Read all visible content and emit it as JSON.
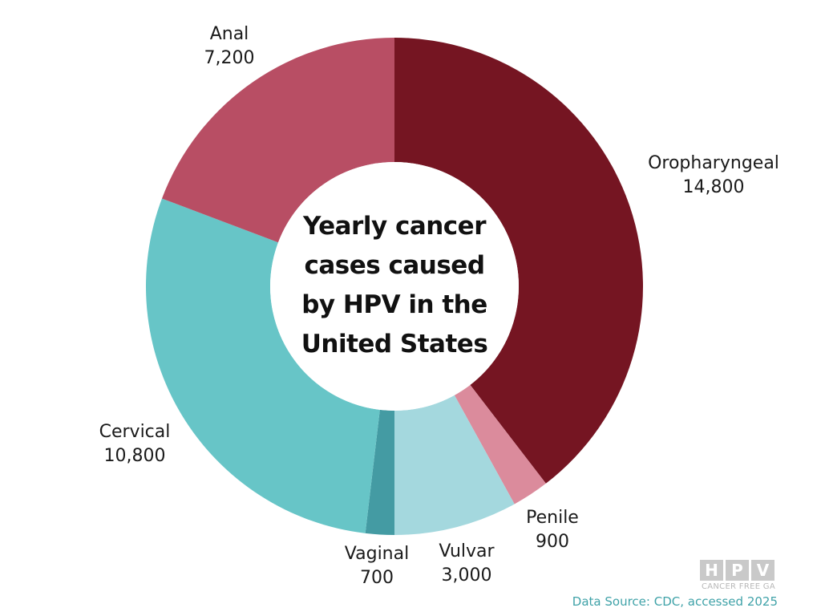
{
  "chart_data": {
    "type": "pie",
    "title_lines": [
      "Yearly cancer",
      "cases caused",
      "by HPV in the",
      "United States"
    ],
    "slices": [
      {
        "label": "Oropharyngeal",
        "value": 14800,
        "value_label": "14,800",
        "color": "#751522"
      },
      {
        "label": "Penile",
        "value": 900,
        "value_label": "900",
        "color": "#db8b9c"
      },
      {
        "label": "Vulvar",
        "value": 3000,
        "value_label": "3,000",
        "color": "#a4d8de"
      },
      {
        "label": "Vaginal",
        "value": 700,
        "value_label": "700",
        "color": "#449ba3"
      },
      {
        "label": "Cervical",
        "value": 10800,
        "value_label": "10,800",
        "color": "#67c5c7"
      },
      {
        "label": "Anal",
        "value": 7200,
        "value_label": "7,200",
        "color": "#b84e64"
      }
    ],
    "start": "top",
    "direction": "clockwise",
    "donut": true
  },
  "logo": {
    "letters": [
      "H",
      "P",
      "V"
    ],
    "subtitle": "CANCER FREE GA"
  },
  "source": "Data Source: CDC, accessed 2025"
}
